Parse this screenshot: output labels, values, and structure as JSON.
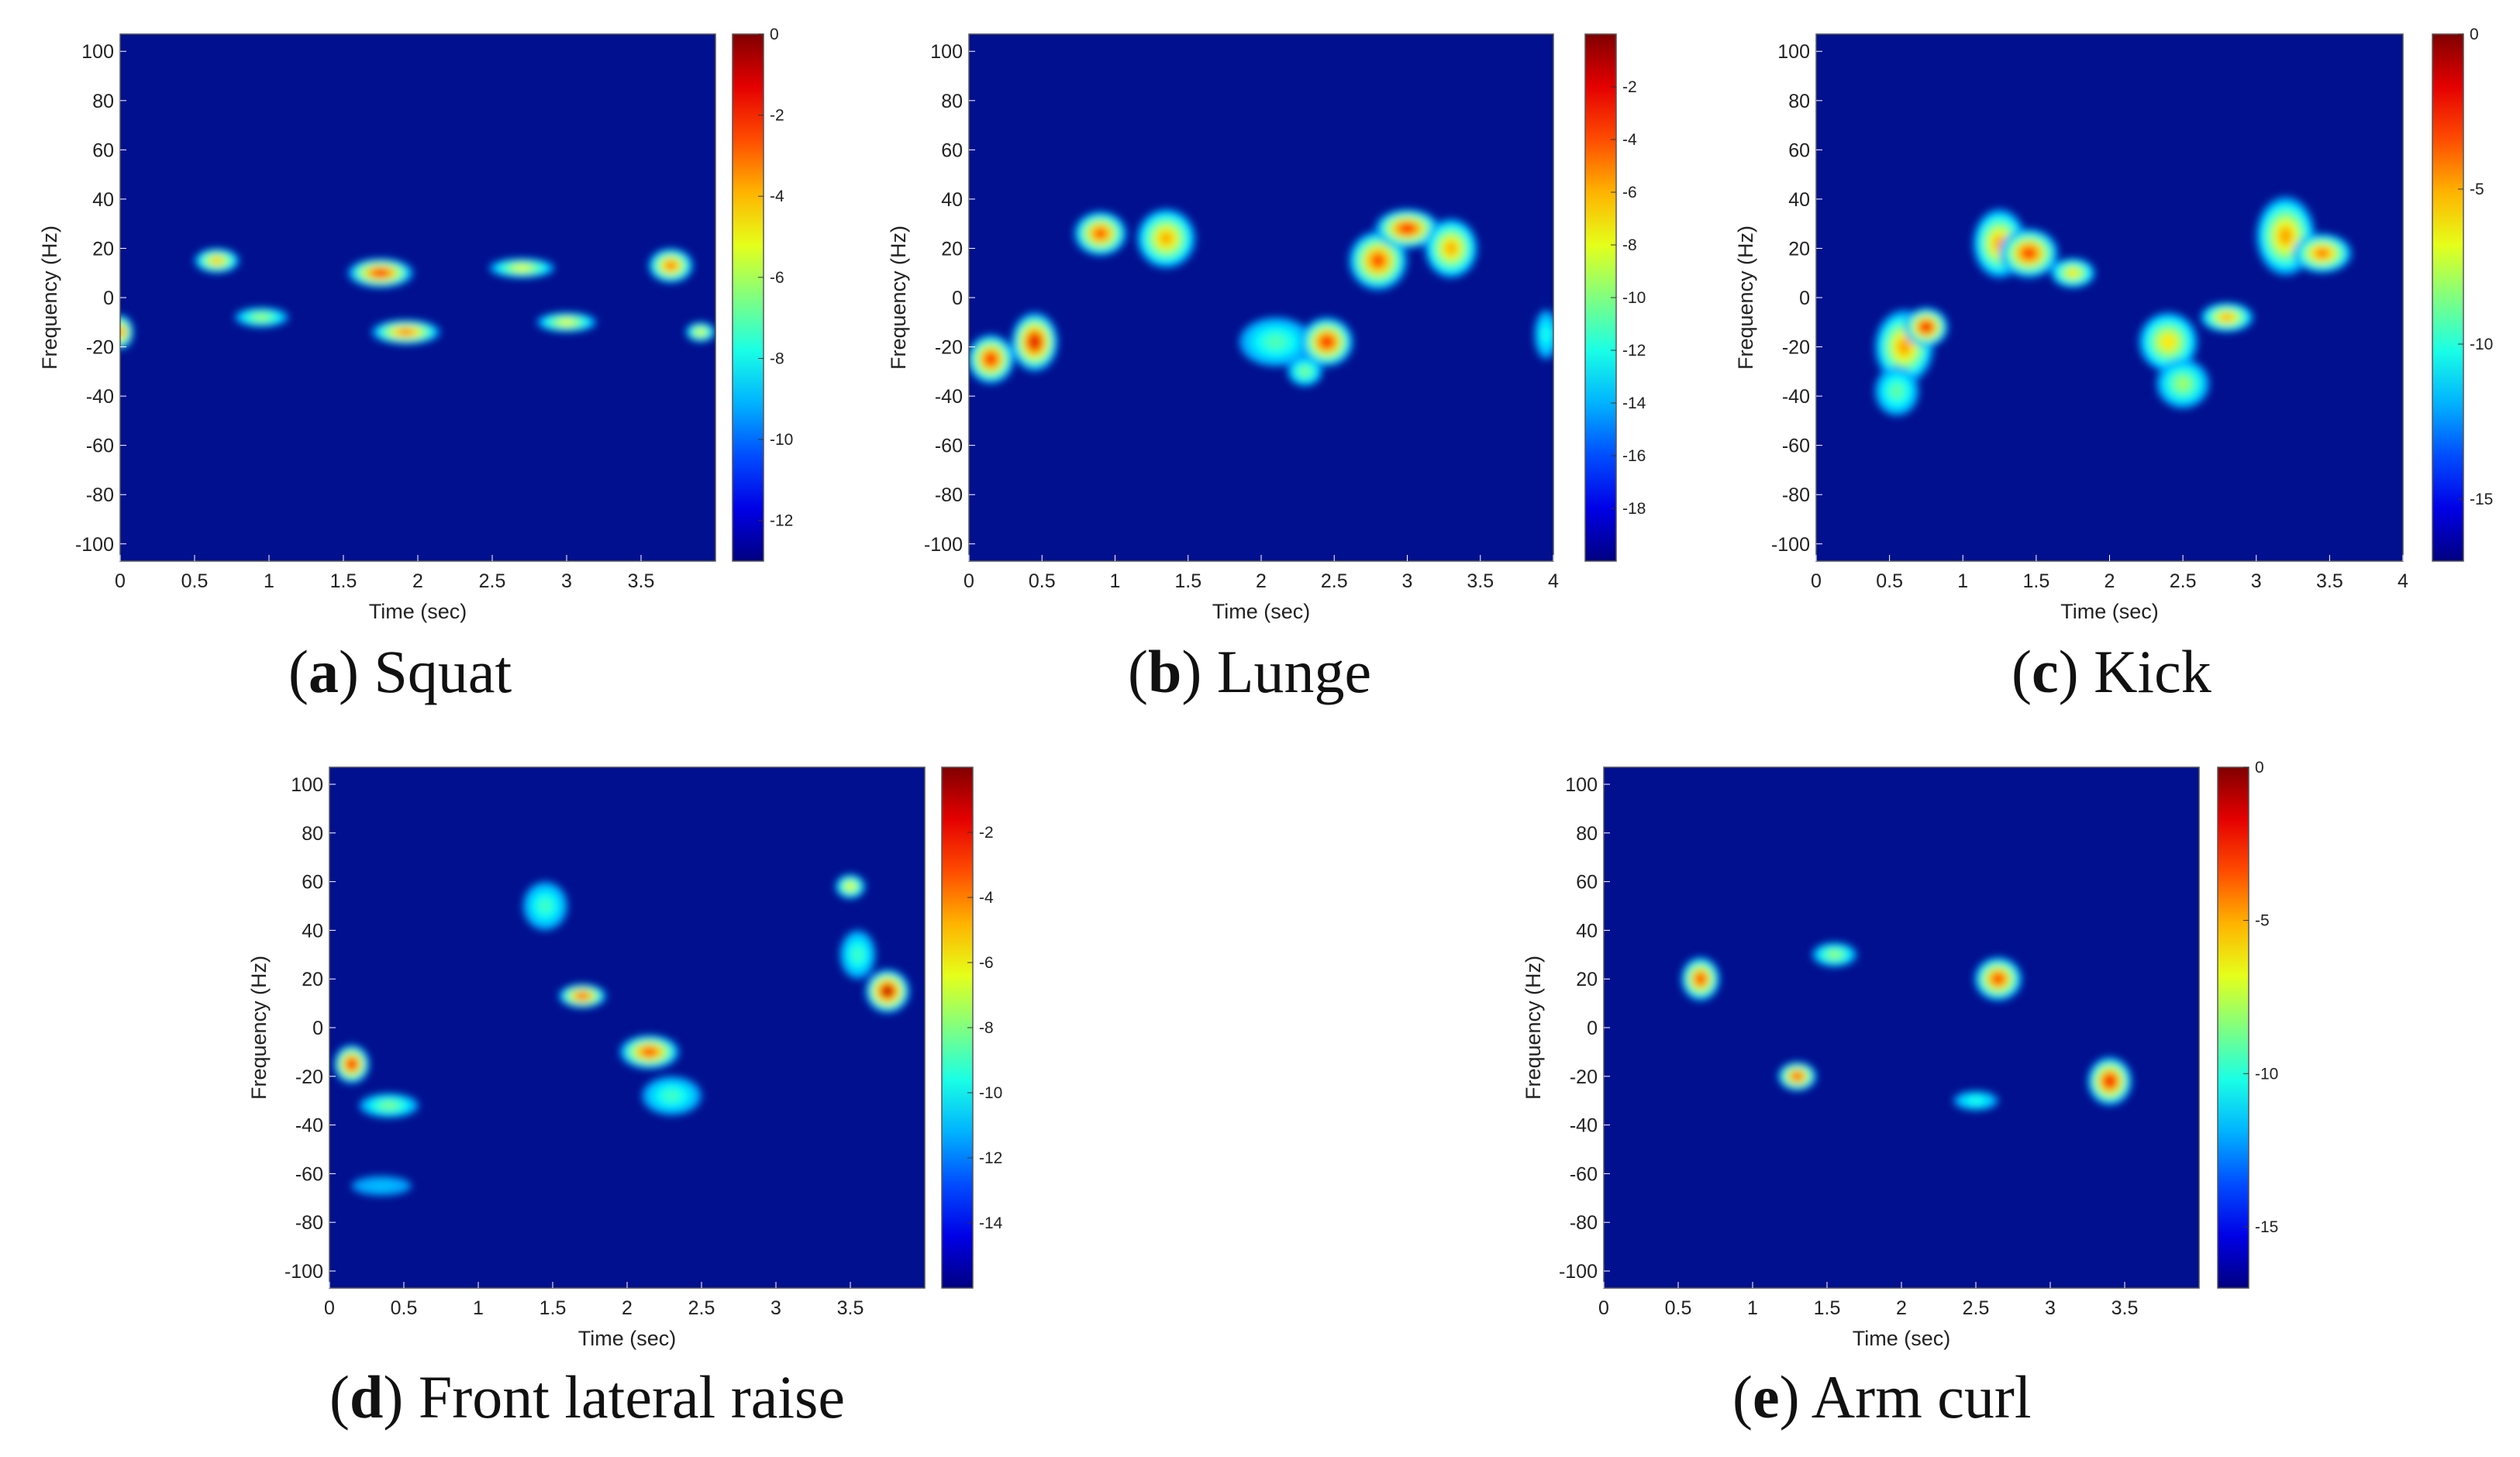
{
  "chart_data": [
    {
      "type": "heatmap",
      "id": "a",
      "caption_letter": "a",
      "caption_text": "Squat",
      "xlabel": "Time (sec)",
      "ylabel": "Frequency (Hz)",
      "xlim": [
        0,
        4
      ],
      "ylim": [
        -107,
        107
      ],
      "xticks": [
        "0",
        "0.5",
        "1",
        "1.5",
        "2",
        "2.5",
        "3",
        "3.5"
      ],
      "xtick_values": [
        0,
        0.5,
        1,
        1.5,
        2,
        2.5,
        3,
        3.5
      ],
      "yticks": [
        "100",
        "80",
        "60",
        "40",
        "20",
        "0",
        "-20",
        "-40",
        "-60",
        "-80",
        "-100"
      ],
      "ytick_values": [
        100,
        80,
        60,
        40,
        20,
        0,
        -20,
        -40,
        -60,
        -80,
        -100
      ],
      "colorbar": {
        "min": -13,
        "max": 0,
        "ticks": [
          "0",
          "-2",
          "-4",
          "-6",
          "-8",
          "-10",
          "-12"
        ],
        "tick_values": [
          0,
          -2,
          -4,
          -6,
          -8,
          -10,
          -12
        ]
      },
      "blobs": [
        {
          "t": 0.65,
          "f": 15,
          "dt": 0.15,
          "df": 5,
          "v": -4
        },
        {
          "t": 0.0,
          "f": -14,
          "dt": 0.09,
          "df": 7,
          "v": -3
        },
        {
          "t": 0.95,
          "f": -8,
          "dt": 0.18,
          "df": 4,
          "v": -6
        },
        {
          "t": 1.75,
          "f": 10,
          "dt": 0.22,
          "df": 6,
          "v": -2
        },
        {
          "t": 1.92,
          "f": -14,
          "dt": 0.23,
          "df": 5,
          "v": -3
        },
        {
          "t": 2.7,
          "f": 12,
          "dt": 0.22,
          "df": 4,
          "v": -5
        },
        {
          "t": 3.0,
          "f": -10,
          "dt": 0.2,
          "df": 4,
          "v": -5
        },
        {
          "t": 3.7,
          "f": 13,
          "dt": 0.15,
          "df": 7,
          "v": -3
        },
        {
          "t": 3.9,
          "f": -14,
          "dt": 0.1,
          "df": 4,
          "v": -5
        }
      ]
    },
    {
      "type": "heatmap",
      "id": "b",
      "caption_letter": "b",
      "caption_text": "Lunge",
      "xlabel": "Time (sec)",
      "ylabel": "Frequency (Hz)",
      "xlim": [
        0,
        4
      ],
      "ylim": [
        -107,
        107
      ],
      "xticks": [
        "0",
        "0.5",
        "1",
        "1.5",
        "2",
        "2.5",
        "3",
        "3.5",
        "4"
      ],
      "xtick_values": [
        0,
        0.5,
        1,
        1.5,
        2,
        2.5,
        3,
        3.5,
        4
      ],
      "yticks": [
        "100",
        "80",
        "60",
        "40",
        "20",
        "0",
        "-20",
        "-40",
        "-60",
        "-80",
        "-100"
      ],
      "ytick_values": [
        100,
        80,
        60,
        40,
        20,
        0,
        -20,
        -40,
        -60,
        -80,
        -100
      ],
      "colorbar": {
        "min": -20,
        "max": 0,
        "ticks": [
          "-2",
          "-4",
          "-6",
          "-8",
          "-10",
          "-12",
          "-14",
          "-16",
          "-18"
        ],
        "tick_values": [
          -2,
          -4,
          -6,
          -8,
          -10,
          -12,
          -14,
          -16,
          -18
        ]
      },
      "blobs": [
        {
          "t": 0.15,
          "f": -25,
          "dt": 0.16,
          "df": 10,
          "v": -3
        },
        {
          "t": 0.45,
          "f": -18,
          "dt": 0.16,
          "df": 12,
          "v": -2
        },
        {
          "t": 0.9,
          "f": 26,
          "dt": 0.18,
          "df": 9,
          "v": -4
        },
        {
          "t": 1.35,
          "f": 24,
          "dt": 0.2,
          "df": 12,
          "v": -6
        },
        {
          "t": 2.1,
          "f": -18,
          "dt": 0.25,
          "df": 10,
          "v": -11
        },
        {
          "t": 2.45,
          "f": -18,
          "dt": 0.18,
          "df": 10,
          "v": -3
        },
        {
          "t": 2.3,
          "f": -30,
          "dt": 0.12,
          "df": 6,
          "v": -10
        },
        {
          "t": 2.8,
          "f": 15,
          "dt": 0.2,
          "df": 12,
          "v": -4
        },
        {
          "t": 3.0,
          "f": 28,
          "dt": 0.22,
          "df": 8,
          "v": -3
        },
        {
          "t": 3.3,
          "f": 20,
          "dt": 0.18,
          "df": 12,
          "v": -6
        },
        {
          "t": 3.95,
          "f": -15,
          "dt": 0.08,
          "df": 10,
          "v": -12
        }
      ]
    },
    {
      "type": "heatmap",
      "id": "c",
      "caption_letter": "c",
      "caption_text": "Kick",
      "xlabel": "Time (sec)",
      "ylabel": "Frequency (Hz)",
      "xlim": [
        0,
        4
      ],
      "ylim": [
        -107,
        107
      ],
      "xticks": [
        "0",
        "0.5",
        "1",
        "1.5",
        "2",
        "2.5",
        "3",
        "3.5",
        "4"
      ],
      "xtick_values": [
        0,
        0.5,
        1,
        1.5,
        2,
        2.5,
        3,
        3.5,
        4
      ],
      "yticks": [
        "100",
        "80",
        "60",
        "40",
        "20",
        "0",
        "-20",
        "-40",
        "-60",
        "-80",
        "-100"
      ],
      "ytick_values": [
        100,
        80,
        60,
        40,
        20,
        0,
        -20,
        -40,
        -60,
        -80,
        -100
      ],
      "colorbar": {
        "min": -17,
        "max": 0,
        "ticks": [
          "0",
          "-5",
          "-10",
          "-15"
        ],
        "tick_values": [
          0,
          -5,
          -10,
          -15
        ]
      },
      "blobs": [
        {
          "t": 0.6,
          "f": -20,
          "dt": 0.2,
          "df": 15,
          "v": -5
        },
        {
          "t": 0.75,
          "f": -12,
          "dt": 0.15,
          "df": 8,
          "v": -2
        },
        {
          "t": 0.55,
          "f": -38,
          "dt": 0.15,
          "df": 10,
          "v": -9
        },
        {
          "t": 1.25,
          "f": 22,
          "dt": 0.18,
          "df": 14,
          "v": -5
        },
        {
          "t": 1.45,
          "f": 18,
          "dt": 0.2,
          "df": 10,
          "v": -3
        },
        {
          "t": 1.75,
          "f": 10,
          "dt": 0.15,
          "df": 6,
          "v": -6
        },
        {
          "t": 2.4,
          "f": -18,
          "dt": 0.2,
          "df": 12,
          "v": -6
        },
        {
          "t": 2.5,
          "f": -35,
          "dt": 0.18,
          "df": 10,
          "v": -8
        },
        {
          "t": 2.8,
          "f": -8,
          "dt": 0.18,
          "df": 6,
          "v": -5
        },
        {
          "t": 3.2,
          "f": 25,
          "dt": 0.2,
          "df": 16,
          "v": -5
        },
        {
          "t": 3.45,
          "f": 18,
          "dt": 0.2,
          "df": 8,
          "v": -4
        }
      ]
    },
    {
      "type": "heatmap",
      "id": "d",
      "caption_letter": "d",
      "caption_text": "Front lateral raise",
      "xlabel": "Time (sec)",
      "ylabel": "Frequency (Hz)",
      "xlim": [
        0,
        4
      ],
      "ylim": [
        -107,
        107
      ],
      "xticks": [
        "0",
        "0.5",
        "1",
        "1.5",
        "2",
        "2.5",
        "3",
        "3.5"
      ],
      "xtick_values": [
        0,
        0.5,
        1,
        1.5,
        2,
        2.5,
        3,
        3.5
      ],
      "yticks": [
        "100",
        "80",
        "60",
        "40",
        "20",
        "0",
        "-20",
        "-40",
        "-60",
        "-80",
        "-100"
      ],
      "ytick_values": [
        100,
        80,
        60,
        40,
        20,
        0,
        -20,
        -40,
        -60,
        -80,
        -100
      ],
      "colorbar": {
        "min": -16,
        "max": 0,
        "ticks": [
          "-2",
          "-4",
          "-6",
          "-8",
          "-10",
          "-12",
          "-14"
        ],
        "tick_values": [
          -2,
          -4,
          -6,
          -8,
          -10,
          -12,
          -14
        ]
      },
      "blobs": [
        {
          "t": 0.15,
          "f": -15,
          "dt": 0.12,
          "df": 8,
          "v": -2
        },
        {
          "t": 0.4,
          "f": -32,
          "dt": 0.2,
          "df": 5,
          "v": -8
        },
        {
          "t": 0.35,
          "f": -65,
          "dt": 0.2,
          "df": 4,
          "v": -11
        },
        {
          "t": 1.45,
          "f": 50,
          "dt": 0.15,
          "df": 10,
          "v": -9
        },
        {
          "t": 1.7,
          "f": 13,
          "dt": 0.16,
          "df": 5,
          "v": -3
        },
        {
          "t": 2.15,
          "f": -10,
          "dt": 0.2,
          "df": 7,
          "v": -3
        },
        {
          "t": 2.3,
          "f": -28,
          "dt": 0.2,
          "df": 8,
          "v": -9
        },
        {
          "t": 3.5,
          "f": 58,
          "dt": 0.1,
          "df": 5,
          "v": -6
        },
        {
          "t": 3.55,
          "f": 30,
          "dt": 0.12,
          "df": 10,
          "v": -9
        },
        {
          "t": 3.75,
          "f": 15,
          "dt": 0.15,
          "df": 9,
          "v": -1
        }
      ]
    },
    {
      "type": "heatmap",
      "id": "e",
      "caption_letter": "e",
      "caption_text": "Arm curl",
      "xlabel": "Time (sec)",
      "ylabel": "Frequency (Hz)",
      "xlim": [
        0,
        4
      ],
      "ylim": [
        -107,
        107
      ],
      "xticks": [
        "0",
        "0.5",
        "1",
        "1.5",
        "2",
        "2.5",
        "3",
        "3.5"
      ],
      "xtick_values": [
        0,
        0.5,
        1,
        1.5,
        2,
        2.5,
        3,
        3.5
      ],
      "yticks": [
        "100",
        "80",
        "60",
        "40",
        "20",
        "0",
        "-20",
        "-40",
        "-60",
        "-80",
        "-100"
      ],
      "ytick_values": [
        100,
        80,
        60,
        40,
        20,
        0,
        -20,
        -40,
        -60,
        -80,
        -100
      ],
      "colorbar": {
        "min": -17,
        "max": 0,
        "ticks": [
          "0",
          "-5",
          "-10",
          "-15"
        ],
        "tick_values": [
          0,
          -5,
          -10,
          -15
        ]
      },
      "blobs": [
        {
          "t": 0.65,
          "f": 20,
          "dt": 0.13,
          "df": 9,
          "v": -3
        },
        {
          "t": 1.3,
          "f": -20,
          "dt": 0.13,
          "df": 6,
          "v": -3
        },
        {
          "t": 1.55,
          "f": 30,
          "dt": 0.15,
          "df": 5,
          "v": -8
        },
        {
          "t": 2.65,
          "f": 20,
          "dt": 0.16,
          "df": 9,
          "v": -3
        },
        {
          "t": 2.5,
          "f": -30,
          "dt": 0.15,
          "df": 4,
          "v": -10
        },
        {
          "t": 3.4,
          "f": -22,
          "dt": 0.15,
          "df": 10,
          "v": -2
        }
      ]
    }
  ]
}
